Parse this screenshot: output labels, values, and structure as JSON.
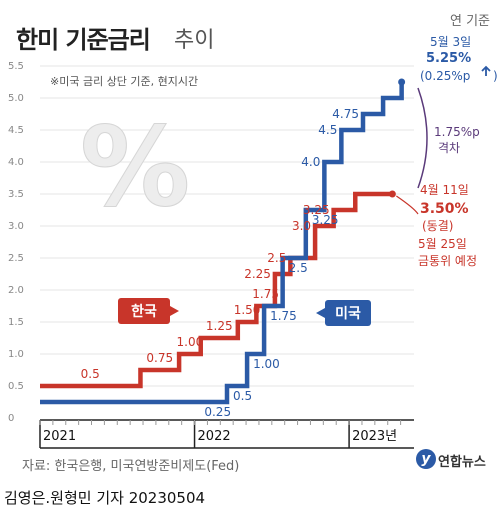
{
  "header": {
    "title_main": "한미 기준금리",
    "title_sub": "추이",
    "unit_note": "연 기준"
  },
  "chart_data": {
    "type": "line",
    "subtitle": "※미국 금리 상단 기준, 현지시간",
    "ylim": [
      0,
      5.5
    ],
    "yticks": [
      "0",
      "0.5",
      "1.0",
      "1.5",
      "2.0",
      "2.5",
      "3.0",
      "3.5",
      "4.0",
      "4.5",
      "5.0",
      "5.5"
    ],
    "ytick_values": [
      0,
      0.5,
      1.0,
      1.5,
      2.0,
      2.5,
      3.0,
      3.5,
      4.0,
      4.5,
      5.0,
      5.5
    ],
    "xlim": [
      2021.0,
      2023.42
    ],
    "x_ticks": [
      {
        "x": 2021.0,
        "label": "2021"
      },
      {
        "x": 2022.0,
        "label": "2022"
      },
      {
        "x": 2023.0,
        "label": "2023년"
      }
    ],
    "grid": true,
    "series": [
      {
        "name": "한국",
        "color": "#c8352a",
        "steps": [
          {
            "x": 2021.0,
            "value": 0.5,
            "label": "0.5"
          },
          {
            "x": 2021.65,
            "value": 0.75,
            "label": "0.75"
          },
          {
            "x": 2021.9,
            "value": 1.0,
            "label": "1.00"
          },
          {
            "x": 2022.04,
            "value": 1.25,
            "label": "1.25"
          },
          {
            "x": 2022.28,
            "value": 1.5,
            "label": "1.50"
          },
          {
            "x": 2022.4,
            "value": 1.75,
            "label": "1.75"
          },
          {
            "x": 2022.52,
            "value": 2.25,
            "label": "2.25"
          },
          {
            "x": 2022.62,
            "value": 2.5,
            "label": "2.5"
          },
          {
            "x": 2022.78,
            "value": 3.0,
            "label": "3.0"
          },
          {
            "x": 2022.9,
            "value": 3.25,
            "label": "3.25"
          },
          {
            "x": 2023.04,
            "value": 3.5,
            "label": ""
          }
        ],
        "end_x": 2023.28
      },
      {
        "name": "미국",
        "color": "#2b5aa6",
        "steps": [
          {
            "x": 2021.0,
            "value": 0.25,
            "label": "0.25"
          },
          {
            "x": 2022.21,
            "value": 0.5,
            "label": "0.5"
          },
          {
            "x": 2022.34,
            "value": 1.0,
            "label": "1.00"
          },
          {
            "x": 2022.45,
            "value": 1.75,
            "label": "1.75"
          },
          {
            "x": 2022.57,
            "value": 2.5,
            "label": "2.5"
          },
          {
            "x": 2022.72,
            "value": 3.25,
            "label": "3.25"
          },
          {
            "x": 2022.84,
            "value": 4.0,
            "label": "4.0"
          },
          {
            "x": 2022.95,
            "value": 4.5,
            "label": "4.5"
          },
          {
            "x": 2023.09,
            "value": 4.75,
            "label": "4.75"
          },
          {
            "x": 2023.22,
            "value": 5.0,
            "label": ""
          },
          {
            "x": 2023.34,
            "value": 5.25,
            "label": ""
          }
        ],
        "end_x": 2023.34
      }
    ],
    "legend_labels": {
      "korea": "한국",
      "us": "미국"
    },
    "annotations": {
      "us_date": "5월 3일",
      "us_rate": "5.25%",
      "us_change": "(0.25%p",
      "gap_value": "1.75%p",
      "gap_label": "격차",
      "kr_date": "4월 11일",
      "kr_rate": "3.50%",
      "kr_status": "(동결)",
      "kr_next_date": "5월 25일",
      "kr_next_event": "금통위 예정"
    }
  },
  "watermark_symbol": "%",
  "footer": {
    "source": "자료: 한국은행, 미국연방준비제도(Fed)",
    "byline": "김영은.원형민 기자  20230504",
    "logo_text": "연합뉴스",
    "logo_mark": "y"
  },
  "colors": {
    "korea": "#c8352a",
    "us": "#2b5aa6",
    "gap_arrow": "#5a3a7a",
    "grid": "#e6e6e6",
    "axis": "#222222"
  },
  "icons": {
    "up_arrow": "up-arrow-icon",
    "gap_arrow": "double-arrow-icon"
  }
}
